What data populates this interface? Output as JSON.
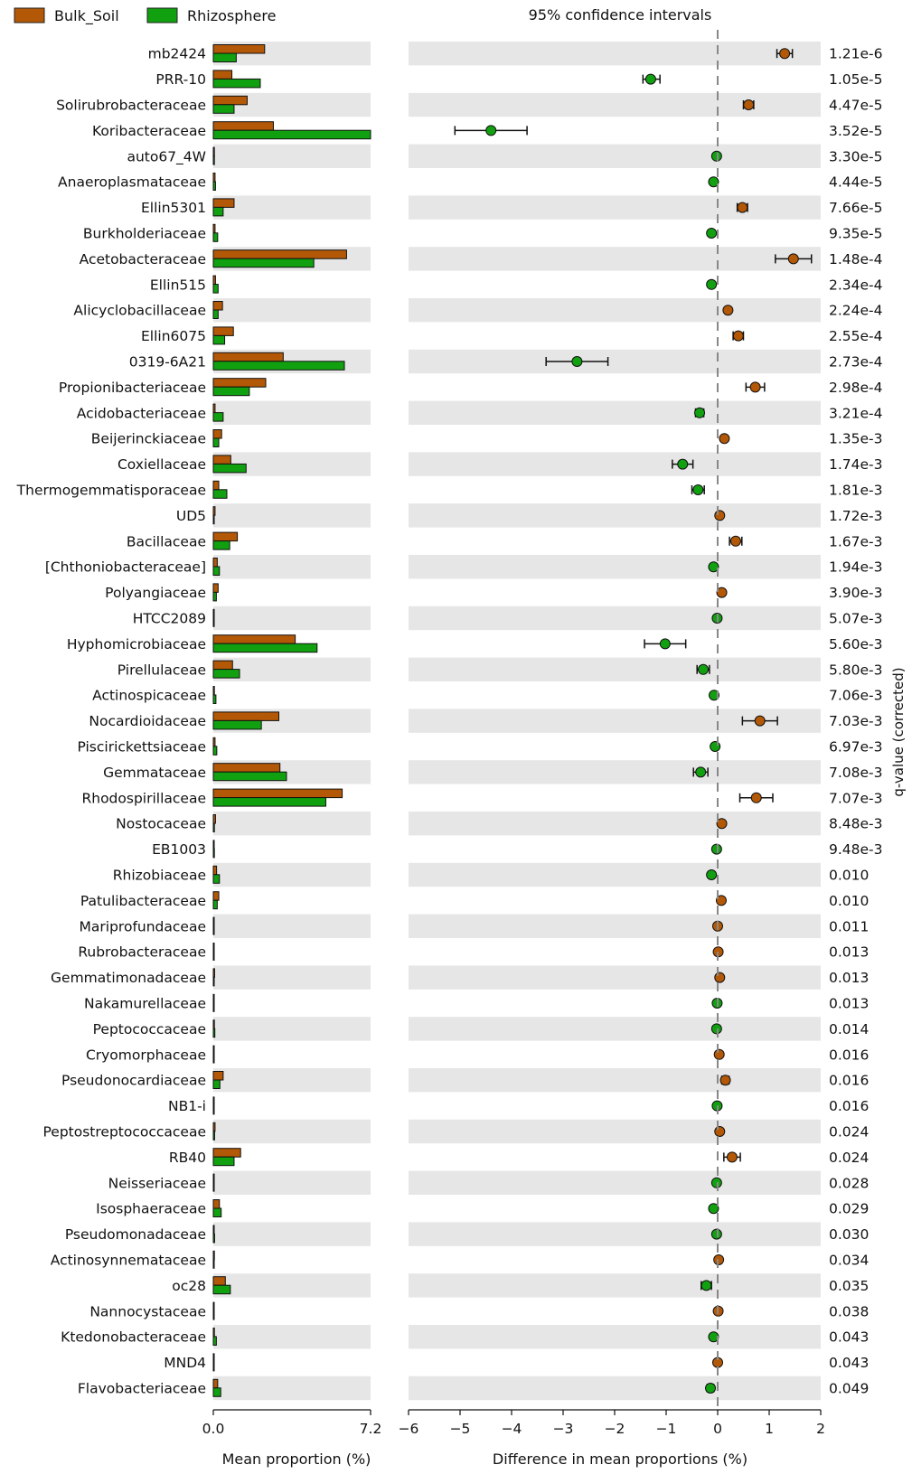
{
  "chart_data": {
    "type": "bar",
    "legend": {
      "placement": "top-left",
      "entries": [
        {
          "name": "Bulk_Soil",
          "color": "#b35806"
        },
        {
          "name": "Rhizosphere",
          "color": "#10a010"
        }
      ]
    },
    "ci_title": "95% confidence intervals",
    "left_panel": {
      "xlabel": "Mean proportion (%)",
      "xlim": [
        0,
        7.2
      ],
      "ticks": [
        "0.0",
        "7.2"
      ]
    },
    "right_panel": {
      "xlabel": "Difference in mean proportions (%)",
      "xlim": [
        -6,
        2
      ],
      "ticks": [
        "−6",
        "−5",
        "−4",
        "−3",
        "−2",
        "−1",
        "0",
        "1",
        "2"
      ]
    },
    "qlabel": "q-value (corrected)",
    "categories": [
      "mb2424",
      "PRR-10",
      "Solirubrobacteraceae",
      "Koribacteraceae",
      "auto67_4W",
      "Anaeroplasmataceae",
      "Ellin5301",
      "Burkholderiaceae",
      "Acetobacteraceae",
      "Ellin515",
      "Alicyclobacillaceae",
      "Ellin6075",
      "0319-6A21",
      "Propionibacteriaceae",
      "Acidobacteriaceae",
      "Beijerinckiaceae",
      "Coxiellaceae",
      "Thermogemmatisporaceae",
      "UD5",
      "Bacillaceae",
      "[Chthoniobacteraceae]",
      "Polyangiaceae",
      "HTCC2089",
      "Hyphomicrobiaceae",
      "Pirellulaceae",
      "Actinospicaceae",
      "Nocardioidaceae",
      "Piscirickettsiaceae",
      "Gemmataceae",
      "Rhodospirillaceae",
      "Nostocaceae",
      "EB1003",
      "Rhizobiaceae",
      "Patulibacteraceae",
      "Mariprofundaceae",
      "Rubrobacteraceae",
      "Gemmatimonadaceae",
      "Nakamurellaceae",
      "Peptococcaceae",
      "Cryomorphaceae",
      "Pseudonocardiaceae",
      "NB1-i",
      "Peptostreptococcaceae",
      "RB40",
      "Neisseriaceae",
      "Isosphaeraceae",
      "Pseudomonadaceae",
      "Actinosynnemataceae",
      "oc28",
      "Nannocystaceae",
      "Ktedonobacteraceae",
      "MND4",
      "Flavobacteriaceae"
    ],
    "series": [
      {
        "name": "Bulk_Soil",
        "values": [
          2.35,
          0.85,
          1.55,
          2.75,
          0.05,
          0.08,
          0.95,
          0.08,
          6.1,
          0.1,
          0.42,
          0.92,
          3.2,
          2.4,
          0.08,
          0.38,
          0.8,
          0.25,
          0.08,
          1.1,
          0.18,
          0.22,
          0.03,
          3.75,
          0.88,
          0.05,
          3.0,
          0.08,
          3.05,
          5.9,
          0.1,
          0.03,
          0.15,
          0.25,
          0.02,
          0.04,
          0.06,
          0.02,
          0.05,
          0.04,
          0.45,
          0.02,
          0.08,
          1.25,
          0.02,
          0.28,
          0.04,
          0.05,
          0.55,
          0.02,
          0.05,
          0.01,
          0.2
        ]
      },
      {
        "name": "Rhizosphere",
        "values": [
          1.05,
          2.15,
          0.95,
          7.2,
          0.05,
          0.1,
          0.45,
          0.2,
          4.6,
          0.22,
          0.22,
          0.52,
          6.0,
          1.65,
          0.45,
          0.25,
          1.5,
          0.62,
          0.04,
          0.75,
          0.28,
          0.14,
          0.04,
          4.75,
          1.2,
          0.12,
          2.2,
          0.16,
          3.35,
          5.15,
          0.05,
          0.05,
          0.28,
          0.18,
          0.02,
          0.03,
          0.04,
          0.03,
          0.07,
          0.02,
          0.3,
          0.03,
          0.06,
          0.95,
          0.04,
          0.36,
          0.06,
          0.04,
          0.78,
          0.02,
          0.14,
          0.02,
          0.34
        ]
      }
    ],
    "differences": [
      {
        "mean": 1.3,
        "ci": [
          1.15,
          1.45
        ]
      },
      {
        "mean": -1.3,
        "ci": [
          -1.45,
          -1.12
        ]
      },
      {
        "mean": 0.6,
        "ci": [
          0.5,
          0.7
        ]
      },
      {
        "mean": -4.4,
        "ci": [
          -5.1,
          -3.7
        ]
      },
      {
        "mean": -0.02,
        "ci": [
          -0.05,
          0.01
        ]
      },
      {
        "mean": -0.08,
        "ci": [
          -0.12,
          -0.04
        ]
      },
      {
        "mean": 0.48,
        "ci": [
          0.38,
          0.58
        ]
      },
      {
        "mean": -0.12,
        "ci": [
          -0.16,
          -0.08
        ]
      },
      {
        "mean": 1.47,
        "ci": [
          1.12,
          1.82
        ]
      },
      {
        "mean": -0.12,
        "ci": [
          -0.16,
          -0.08
        ]
      },
      {
        "mean": 0.2,
        "ci": [
          0.15,
          0.25
        ]
      },
      {
        "mean": 0.4,
        "ci": [
          0.3,
          0.5
        ]
      },
      {
        "mean": -2.73,
        "ci": [
          -3.33,
          -2.13
        ]
      },
      {
        "mean": 0.73,
        "ci": [
          0.55,
          0.91
        ]
      },
      {
        "mean": -0.35,
        "ci": [
          -0.43,
          -0.27
        ]
      },
      {
        "mean": 0.13,
        "ci": [
          0.09,
          0.17
        ]
      },
      {
        "mean": -0.68,
        "ci": [
          -0.88,
          -0.48
        ]
      },
      {
        "mean": -0.38,
        "ci": [
          -0.5,
          -0.26
        ]
      },
      {
        "mean": 0.04,
        "ci": [
          0.02,
          0.06
        ]
      },
      {
        "mean": 0.35,
        "ci": [
          0.23,
          0.47
        ]
      },
      {
        "mean": -0.08,
        "ci": [
          -0.12,
          -0.04
        ]
      },
      {
        "mean": 0.08,
        "ci": [
          0.05,
          0.11
        ]
      },
      {
        "mean": -0.01,
        "ci": [
          -0.02,
          0.0
        ]
      },
      {
        "mean": -1.02,
        "ci": [
          -1.42,
          -0.62
        ]
      },
      {
        "mean": -0.28,
        "ci": [
          -0.4,
          -0.16
        ]
      },
      {
        "mean": -0.07,
        "ci": [
          -0.1,
          -0.04
        ]
      },
      {
        "mean": 0.82,
        "ci": [
          0.48,
          1.16
        ]
      },
      {
        "mean": -0.05,
        "ci": [
          -0.08,
          -0.02
        ]
      },
      {
        "mean": -0.33,
        "ci": [
          -0.47,
          -0.19
        ]
      },
      {
        "mean": 0.75,
        "ci": [
          0.43,
          1.07
        ]
      },
      {
        "mean": 0.08,
        "ci": [
          0.05,
          0.11
        ]
      },
      {
        "mean": -0.02,
        "ci": [
          -0.03,
          -0.01
        ]
      },
      {
        "mean": -0.12,
        "ci": [
          -0.17,
          -0.07
        ]
      },
      {
        "mean": 0.07,
        "ci": [
          0.04,
          0.1
        ]
      },
      {
        "mean": 0.0,
        "ci": [
          -0.01,
          0.01
        ]
      },
      {
        "mean": 0.01,
        "ci": [
          0.0,
          0.02
        ]
      },
      {
        "mean": 0.04,
        "ci": [
          0.02,
          0.06
        ]
      },
      {
        "mean": -0.01,
        "ci": [
          -0.02,
          0.0
        ]
      },
      {
        "mean": -0.02,
        "ci": [
          -0.03,
          -0.01
        ]
      },
      {
        "mean": 0.03,
        "ci": [
          0.01,
          0.05
        ]
      },
      {
        "mean": 0.15,
        "ci": [
          0.08,
          0.22
        ]
      },
      {
        "mean": -0.01,
        "ci": [
          -0.02,
          0.0
        ]
      },
      {
        "mean": 0.04,
        "ci": [
          0.02,
          0.06
        ]
      },
      {
        "mean": 0.28,
        "ci": [
          0.12,
          0.44
        ]
      },
      {
        "mean": -0.02,
        "ci": [
          -0.03,
          -0.01
        ]
      },
      {
        "mean": -0.08,
        "ci": [
          -0.12,
          -0.04
        ]
      },
      {
        "mean": -0.02,
        "ci": [
          -0.03,
          -0.01
        ]
      },
      {
        "mean": 0.02,
        "ci": [
          0.01,
          0.03
        ]
      },
      {
        "mean": -0.22,
        "ci": [
          -0.32,
          -0.12
        ]
      },
      {
        "mean": 0.01,
        "ci": [
          0.0,
          0.02
        ]
      },
      {
        "mean": -0.08,
        "ci": [
          -0.11,
          -0.05
        ]
      },
      {
        "mean": 0.0,
        "ci": [
          -0.01,
          0.01
        ]
      },
      {
        "mean": -0.14,
        "ci": [
          -0.2,
          -0.08
        ]
      }
    ],
    "qvalues": [
      "1.21e-6",
      "1.05e-5",
      "4.47e-5",
      "3.52e-5",
      "3.30e-5",
      "4.44e-5",
      "7.66e-5",
      "9.35e-5",
      "1.48e-4",
      "2.34e-4",
      "2.24e-4",
      "2.55e-4",
      "2.73e-4",
      "2.98e-4",
      "3.21e-4",
      "1.35e-3",
      "1.74e-3",
      "1.81e-3",
      "1.72e-3",
      "1.67e-3",
      "1.94e-3",
      "3.90e-3",
      "5.07e-3",
      "5.60e-3",
      "5.80e-3",
      "7.06e-3",
      "7.03e-3",
      "6.97e-3",
      "7.08e-3",
      "7.07e-3",
      "8.48e-3",
      "9.48e-3",
      "0.010",
      "0.010",
      "0.011",
      "0.013",
      "0.013",
      "0.013",
      "0.014",
      "0.016",
      "0.016",
      "0.016",
      "0.024",
      "0.024",
      "0.028",
      "0.029",
      "0.030",
      "0.034",
      "0.035",
      "0.038",
      "0.043",
      "0.043",
      "0.049"
    ],
    "grid": false,
    "stripes": true
  }
}
